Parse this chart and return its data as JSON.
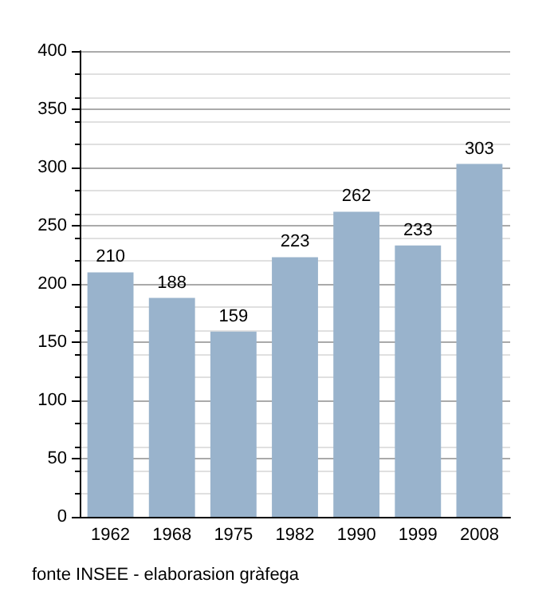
{
  "chart_data": {
    "type": "bar",
    "categories": [
      "1962",
      "1968",
      "1975",
      "1982",
      "1990",
      "1999",
      "2008"
    ],
    "values": [
      210,
      188,
      159,
      223,
      262,
      233,
      303
    ],
    "color": "#99b3cc",
    "ylim": [
      0,
      400
    ],
    "yticks": [
      0,
      50,
      100,
      150,
      200,
      250,
      300,
      350,
      400
    ],
    "grid": true,
    "data_labels": true,
    "annotations": [
      "fonte INSEE - elaborasion gràfega"
    ]
  }
}
